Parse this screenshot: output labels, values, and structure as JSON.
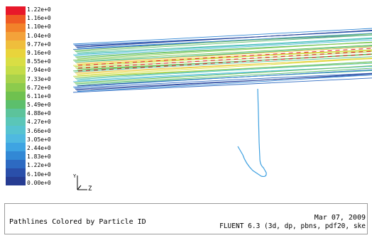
{
  "legend": {
    "values": [
      "1.22e+0",
      "1.16e+0",
      "1.10e+0",
      "1.04e+0",
      "9.77e+0",
      "9.16e+0",
      "8.55e+0",
      "7.94e+0",
      "7.33e+0",
      "6.72e+0",
      "6.11e+0",
      "5.49e+0",
      "4.88e+0",
      "4.27e+0",
      "3.66e+0",
      "3.05e+0",
      "2.44e+0",
      "1.83e+0",
      "1.22e+0",
      "6.10e+0",
      "0.00e+0"
    ],
    "colors": [
      "#e8182a",
      "#ef5a23",
      "#f2822a",
      "#f3a23a",
      "#efbe3c",
      "#e9d43b",
      "#d9de44",
      "#c4dc48",
      "#a8d24b",
      "#8ccb4d",
      "#6fc14f",
      "#5cbf6c",
      "#5cc39b",
      "#5ac6b8",
      "#56c3d0",
      "#4fb9e0",
      "#3ea4e2",
      "#3288d5",
      "#2d6ac2",
      "#2a4faa",
      "#263c92"
    ]
  },
  "axis": {
    "horizontal_label": "Z",
    "vertical_label": "Y"
  },
  "footer": {
    "title": "Pathlines Colored by Particle ID",
    "date": "Mar 07, 2009",
    "solver_info": "FLUENT 6.3 (3d, dp, pbns, pdf20, ske"
  }
}
